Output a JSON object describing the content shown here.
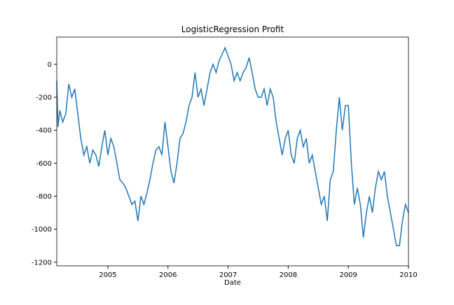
{
  "chart_data": {
    "type": "line",
    "title": "LogisticRegression Profit",
    "x_label": "Date",
    "x": [
      2004.15,
      2004.17,
      2004.2,
      2004.25,
      2004.3,
      2004.35,
      2004.4,
      2004.45,
      2004.5,
      2004.55,
      2004.6,
      2004.65,
      2004.7,
      2004.75,
      2004.8,
      2004.85,
      2004.9,
      2004.95,
      2005.0,
      2005.05,
      2005.1,
      2005.15,
      2005.2,
      2005.25,
      2005.3,
      2005.35,
      2005.4,
      2005.45,
      2005.5,
      2005.55,
      2005.6,
      2005.65,
      2005.7,
      2005.75,
      2005.8,
      2005.85,
      2005.9,
      2005.95,
      2006.0,
      2006.05,
      2006.1,
      2006.15,
      2006.2,
      2006.25,
      2006.3,
      2006.35,
      2006.4,
      2006.45,
      2006.5,
      2006.55,
      2006.6,
      2006.65,
      2006.7,
      2006.75,
      2006.8,
      2006.85,
      2006.9,
      2006.95,
      2007.0,
      2007.05,
      2007.1,
      2007.15,
      2007.2,
      2007.25,
      2007.3,
      2007.35,
      2007.4,
      2007.45,
      2007.5,
      2007.55,
      2007.6,
      2007.65,
      2007.7,
      2007.75,
      2007.8,
      2007.85,
      2007.9,
      2007.95,
      2008.0,
      2008.05,
      2008.1,
      2008.15,
      2008.2,
      2008.25,
      2008.3,
      2008.35,
      2008.4,
      2008.45,
      2008.5,
      2008.55,
      2008.6,
      2008.65,
      2008.7,
      2008.75,
      2008.8,
      2008.85,
      2008.9,
      2008.95,
      2009.0,
      2009.05,
      2009.1,
      2009.15,
      2009.2,
      2009.25,
      2009.3,
      2009.35,
      2009.4,
      2009.45,
      2009.5,
      2009.55,
      2009.6,
      2009.65,
      2009.7,
      2009.75,
      2009.8,
      2009.85,
      2009.9,
      2009.95,
      2010.0
    ],
    "series": [
      {
        "name": "Profit",
        "color": "#1f77b4",
        "values": [
          -100,
          -380,
          -280,
          -350,
          -300,
          -120,
          -200,
          -150,
          -300,
          -450,
          -550,
          -500,
          -600,
          -520,
          -550,
          -620,
          -500,
          -400,
          -550,
          -450,
          -500,
          -600,
          -700,
          -720,
          -750,
          -800,
          -850,
          -830,
          -950,
          -800,
          -850,
          -780,
          -700,
          -600,
          -520,
          -500,
          -550,
          -350,
          -500,
          -650,
          -720,
          -600,
          -450,
          -420,
          -350,
          -250,
          -200,
          -50,
          -200,
          -150,
          -250,
          -150,
          -50,
          0,
          -50,
          20,
          60,
          100,
          50,
          0,
          -100,
          -50,
          -100,
          -50,
          -20,
          40,
          -50,
          -150,
          -200,
          -200,
          -150,
          -250,
          -150,
          -200,
          -350,
          -450,
          -550,
          -450,
          -400,
          -550,
          -600,
          -450,
          -400,
          -500,
          -450,
          -600,
          -550,
          -650,
          -750,
          -850,
          -800,
          -950,
          -700,
          -650,
          -400,
          -200,
          -400,
          -250,
          -250,
          -600,
          -850,
          -750,
          -850,
          -1050,
          -900,
          -800,
          -900,
          -750,
          -650,
          -700,
          -650,
          -800,
          -900,
          -1000,
          -1100,
          -1100,
          -950,
          -850,
          -900
        ]
      }
    ],
    "xlim": [
      2004.15,
      2010.0
    ],
    "xticks": [
      2005,
      2006,
      2007,
      2008,
      2009,
      2010
    ],
    "ylim": [
      -1222,
      165
    ],
    "yticks": [
      -1200,
      -1000,
      -800,
      -600,
      -400,
      -200,
      0
    ]
  }
}
